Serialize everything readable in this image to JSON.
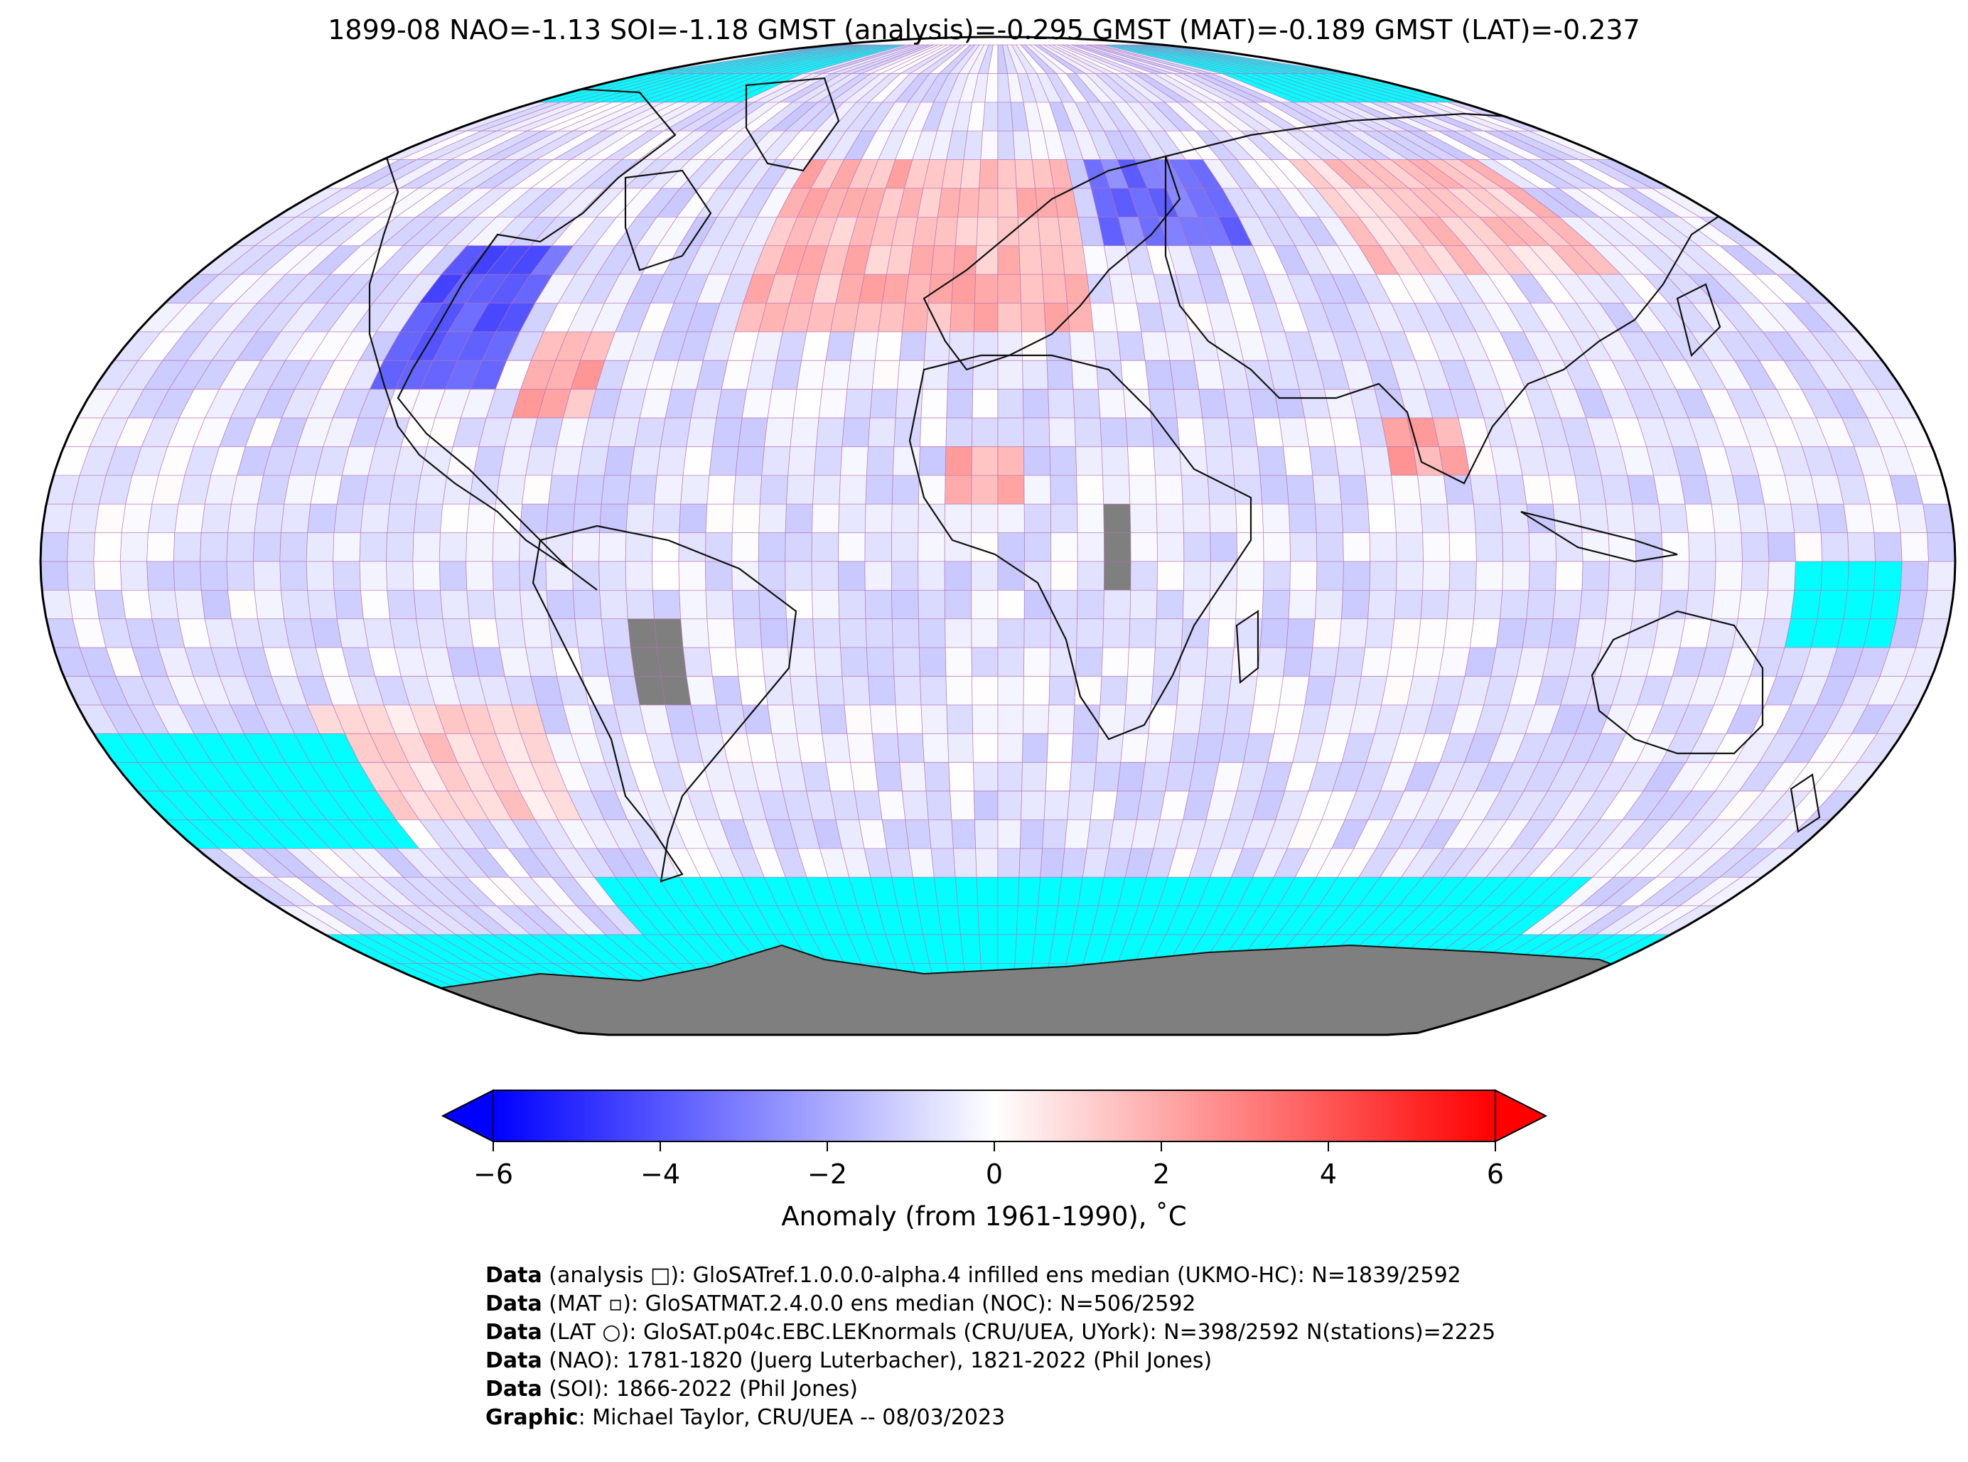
{
  "title": "1899-08 NAO=-1.13 SOI=-1.18 GMST (analysis)=-0.295 GMST (MAT)=-0.189 GMST (LAT)=-0.237",
  "colorbar": {
    "label": "Anomaly (from 1961-1990), ˚C",
    "ticks": [
      "−6",
      "−4",
      "−2",
      "0",
      "2",
      "4",
      "6"
    ],
    "vmin": -6,
    "vmax": 6,
    "colors": {
      "low": "#0000ff",
      "mid": "#ffffff",
      "high": "#ff0000"
    }
  },
  "legend_colors": {
    "no_data": "#00ffff",
    "land_mask": "#7f7f7f",
    "grid": "#b26fb0"
  },
  "credits": [
    {
      "key": "Data",
      "text": " (analysis □): GloSATref.1.0.0.0-alpha.4 infilled ens median (UKMO-HC): N=1839/2592"
    },
    {
      "key": "Data",
      "text": " (MAT ▫): GloSATMAT.2.4.0.0 ens median (NOC): N=506/2592"
    },
    {
      "key": "Data",
      "text": " (LAT ○): GloSAT.p04c.EBC.LEKnormals (CRU/UEA, UYork): N=398/2592 N(stations)=2225"
    },
    {
      "key": "Data",
      "text": " (NAO): 1781-1820 (Juerg Luterbacher), 1821-2022 (Phil Jones)"
    },
    {
      "key": "Data",
      "text": " (SOI): 1866-2022 (Phil Jones)"
    },
    {
      "key": "Graphic",
      "text": ": Michael Taylor, CRU/UEA -- 08/03/2023"
    }
  ]
}
